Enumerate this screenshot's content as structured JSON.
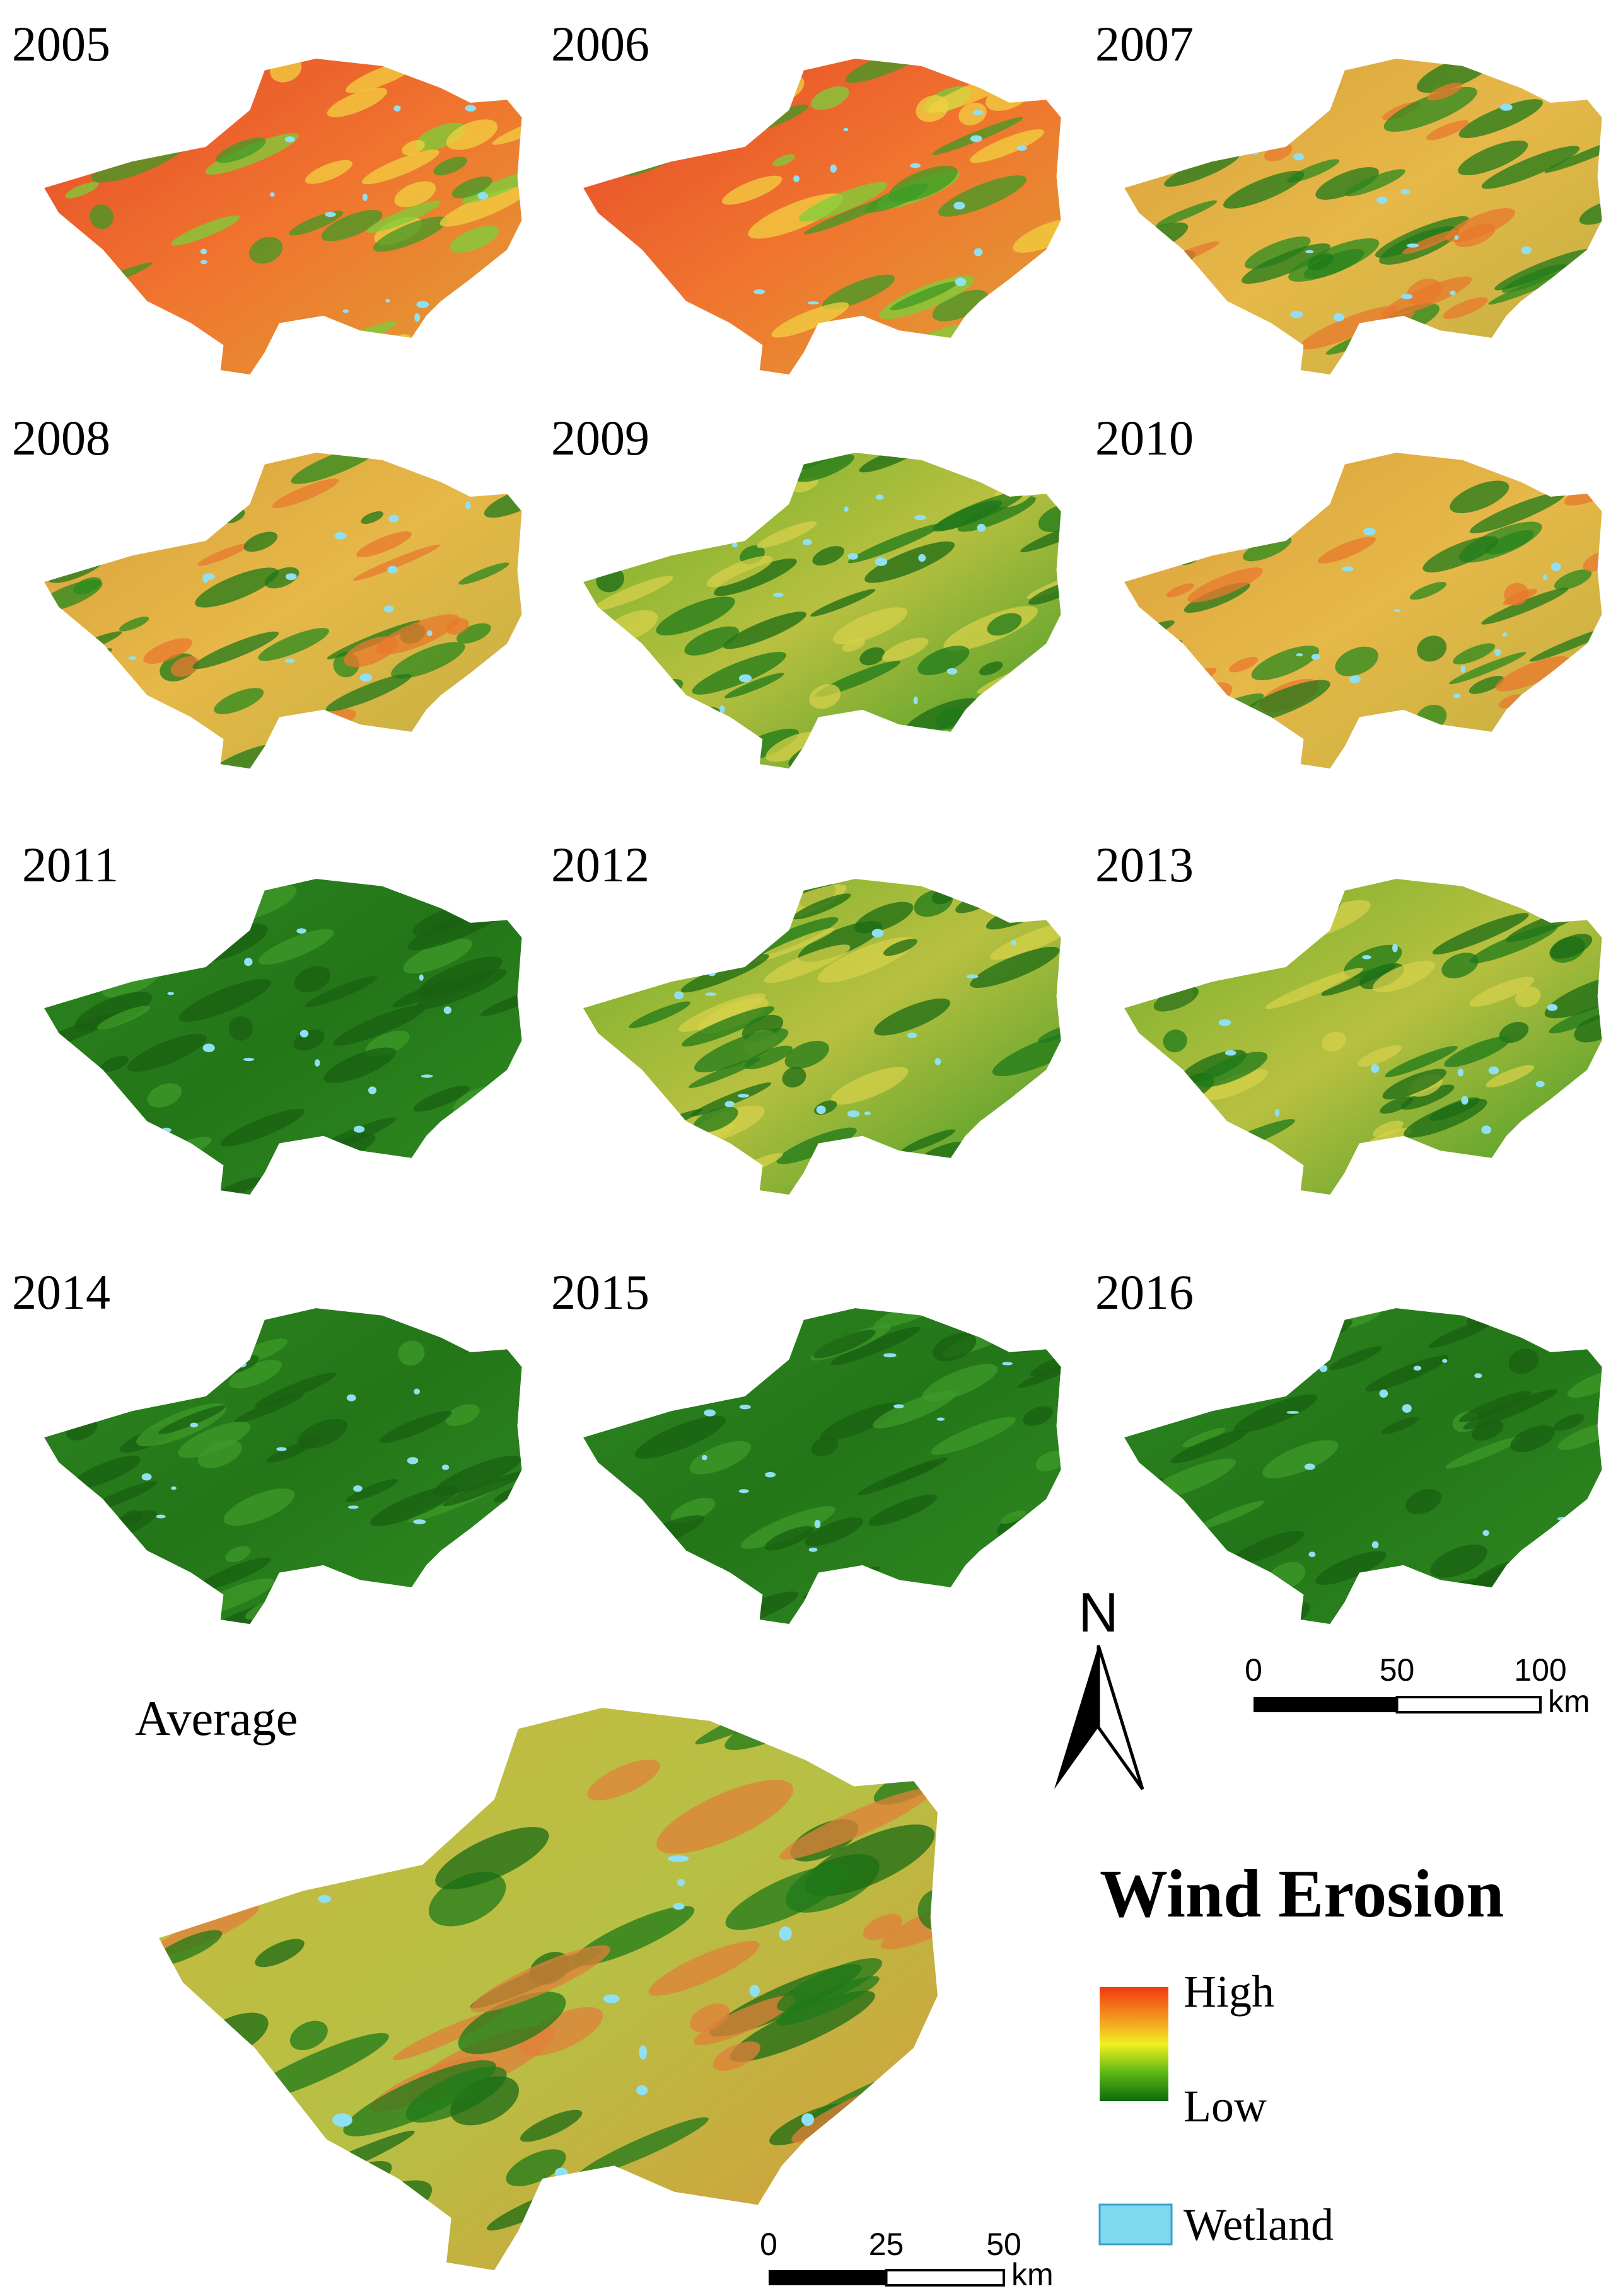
{
  "panels": [
    {
      "label": "2005"
    },
    {
      "label": "2006"
    },
    {
      "label": "2007"
    },
    {
      "label": "2008"
    },
    {
      "label": "2009"
    },
    {
      "label": "2010"
    },
    {
      "label": "2011"
    },
    {
      "label": "2012"
    },
    {
      "label": "2013"
    },
    {
      "label": "2014"
    },
    {
      "label": "2015"
    },
    {
      "label": "2016"
    }
  ],
  "average": {
    "label": "Average"
  },
  "north_arrow": {
    "label": "N"
  },
  "scale_bars": [
    {
      "ticks": [
        "0",
        "50",
        "100"
      ],
      "unit": "km"
    },
    {
      "ticks": [
        "0",
        "25",
        "50"
      ],
      "unit": "km"
    }
  ],
  "legend": {
    "title": "Wind Erosion",
    "high": "High",
    "low": "Low",
    "wetland": "Wetland"
  }
}
